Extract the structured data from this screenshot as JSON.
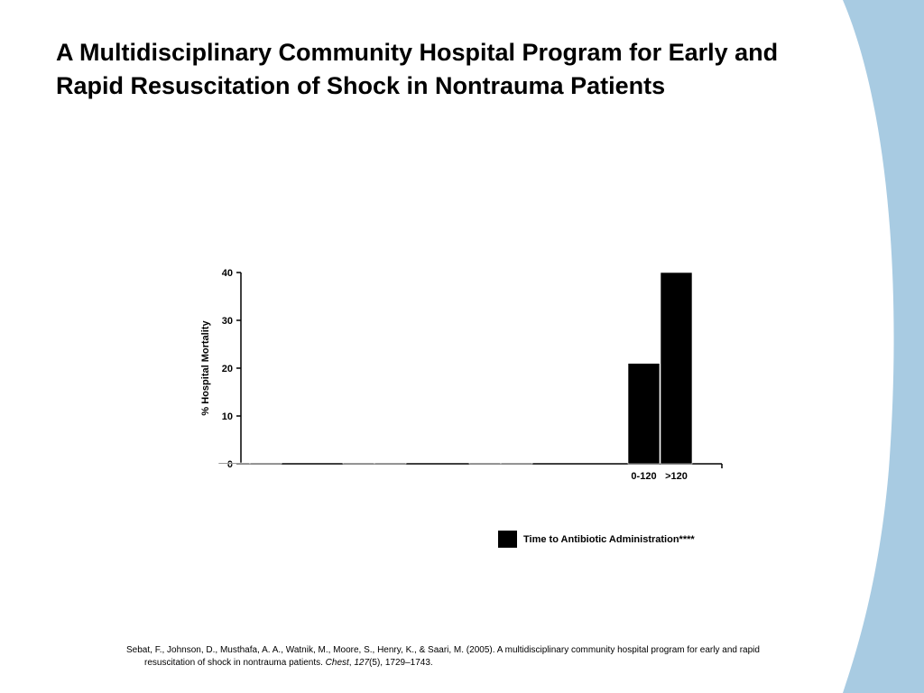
{
  "slide": {
    "title": "A Multidisciplinary Community Hospital Program for Early and Rapid Resuscitation of Shock in Nontrauma Patients",
    "citation": {
      "before_journal": "Sebat, F., Johnson, D., Musthafa, A. A., Watnik, M., Moore, S., Henry, K., & Saari, M. (2005). A multidisciplinary community hospital program for early and rapid resuscitation of shock in nontrauma patients. ",
      "journal": "Chest",
      "sep": ", ",
      "volume": "127",
      "after_volume": "(5), 1729–1743."
    },
    "colors": {
      "band": "#a8cbe2",
      "bar": "#000000",
      "background": "#ffffff"
    }
  },
  "chart_data": {
    "type": "bar",
    "title": "",
    "ylabel": "% Hospital Mortality",
    "xlabel": "",
    "ylim": [
      0,
      40
    ],
    "yticks": [
      0,
      10,
      20,
      30,
      40
    ],
    "categories": [
      "",
      "",
      "",
      "",
      "",
      "",
      "0-120",
      ">120"
    ],
    "series": [
      {
        "name": "Time to Antibiotic Administration****",
        "values": [
          0,
          0,
          0,
          0,
          0,
          0,
          21,
          40
        ]
      }
    ],
    "legend": {
      "position": "bottom-right",
      "label": "Time to Antibiotic Administration****"
    },
    "grid": false
  }
}
